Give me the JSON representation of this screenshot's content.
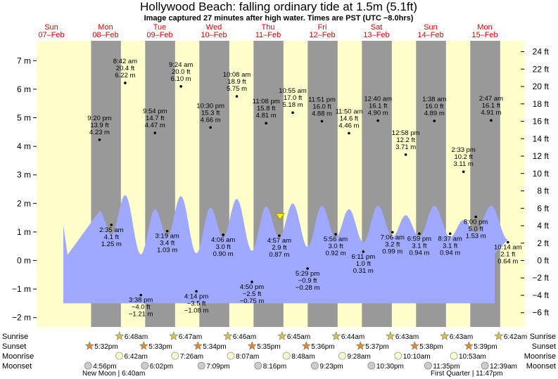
{
  "header": {
    "title": "Hollywood Beach: falling  ordinary tide at 1.5m (5.1ft)",
    "subtitle": "Image captured 27 minutes after high water. Times are PST (UTC −8.0hrs)"
  },
  "chart_data": {
    "type": "area",
    "days": [
      {
        "dow": "Sun",
        "date": "07–Feb"
      },
      {
        "dow": "Mon",
        "date": "08–Feb"
      },
      {
        "dow": "Tue",
        "date": "09–Feb"
      },
      {
        "dow": "Wed",
        "date": "10–Feb"
      },
      {
        "dow": "Thu",
        "date": "11–Feb"
      },
      {
        "dow": "Fri",
        "date": "12–Feb"
      },
      {
        "dow": "Sat",
        "date": "13–Feb"
      },
      {
        "dow": "Sun",
        "date": "14–Feb"
      },
      {
        "dow": "Mon",
        "date": "15–Feb"
      }
    ],
    "y_left": {
      "unit": "m",
      "ylim": [
        -2.3,
        7.6
      ],
      "ticks": [
        -2,
        -1,
        0,
        1,
        2,
        3,
        4,
        5,
        6,
        7
      ],
      "tick_labels": [
        "−2 m",
        "−1 m",
        "0 m",
        "1 m",
        "2 m",
        "3 m",
        "4 m",
        "5 m",
        "6 m",
        "7 m"
      ]
    },
    "y_right": {
      "unit": "ft",
      "ticks": [
        -6,
        -4,
        -2,
        0,
        2,
        4,
        6,
        8,
        10,
        12,
        14,
        16,
        18,
        20,
        22,
        24
      ],
      "tick_labels": [
        "−6 ft",
        "−4 ft",
        "−2 ft",
        "0 ft",
        "2 ft",
        "4 ft",
        "6 ft",
        "8 ft",
        "10 ft",
        "12 ft",
        "14 ft",
        "16 ft",
        "18 ft",
        "20 ft",
        "22 ft",
        "24 ft"
      ]
    },
    "series": [
      {
        "values": [
          {
            "day": 0,
            "time": "9:20 pm",
            "ft": "13.9 ft",
            "m": 4.23,
            "lab": "4.23 m",
            "hour": 21.33
          },
          {
            "day": 1,
            "time": "2:35 am",
            "ft": "4.1 ft",
            "m": 1.25,
            "lab": "1.25 m",
            "hour": 2.58
          },
          {
            "day": 1,
            "time": "8:42 am",
            "ft": "20.4 ft",
            "m": 6.22,
            "lab": "6.22 m",
            "hour": 8.7
          },
          {
            "day": 1,
            "time": "3:38 pm",
            "ft": "−4.0 ft",
            "m": -1.21,
            "lab": "−1.21 m",
            "hour": 15.63
          },
          {
            "day": 1,
            "time": "9:54 pm",
            "ft": "14.7 ft",
            "m": 4.47,
            "lab": "4.47 m",
            "hour": 21.9
          },
          {
            "day": 2,
            "time": "3:19 am",
            "ft": "3.4 ft",
            "m": 1.03,
            "lab": "1.03 m",
            "hour": 3.32
          },
          {
            "day": 2,
            "time": "9:24 am",
            "ft": "20.0 ft",
            "m": 6.1,
            "lab": "6.10 m",
            "hour": 9.4
          },
          {
            "day": 2,
            "time": "4:14 pm",
            "ft": "−3.5 ft",
            "m": -1.08,
            "lab": "−1.08 m",
            "hour": 16.23
          },
          {
            "day": 2,
            "time": "10:30 pm",
            "ft": "15.3 ft",
            "m": 4.66,
            "lab": "4.66 m",
            "hour": 22.5
          },
          {
            "day": 3,
            "time": "4:06 am",
            "ft": "3.0 ft",
            "m": 0.9,
            "lab": "0.90 m",
            "hour": 4.1
          },
          {
            "day": 3,
            "time": "10:08 am",
            "ft": "18.9 ft",
            "m": 5.75,
            "lab": "5.75 m",
            "hour": 10.13
          },
          {
            "day": 3,
            "time": "4:50 pm",
            "ft": "−2.5 ft",
            "m": -0.75,
            "lab": "−0.75 m",
            "hour": 16.83
          },
          {
            "day": 3,
            "time": "11:08 pm",
            "ft": "15.8 ft",
            "m": 4.81,
            "lab": "4.81 m",
            "hour": 23.13
          },
          {
            "day": 4,
            "time": "4:57 am",
            "ft": "2.9 ft",
            "m": 0.87,
            "lab": "0.87 m",
            "hour": 4.95
          },
          {
            "day": 4,
            "time": "10:55 am",
            "ft": "17.0 ft",
            "m": 5.18,
            "lab": "5.18 m",
            "hour": 10.92
          },
          {
            "day": 4,
            "time": "5:29 pm",
            "ft": "−0.9 ft",
            "m": -0.28,
            "lab": "−0.28 m",
            "hour": 17.48
          },
          {
            "day": 4,
            "time": "11:51 pm",
            "ft": "16.0 ft",
            "m": 4.88,
            "lab": "4.88 m",
            "hour": 23.85
          },
          {
            "day": 5,
            "time": "5:56 am",
            "ft": "3.0 ft",
            "m": 0.92,
            "lab": "0.92 m",
            "hour": 5.93
          },
          {
            "day": 5,
            "time": "11:50 am",
            "ft": "14.6 ft",
            "m": 4.46,
            "lab": "4.46 m",
            "hour": 11.83
          },
          {
            "day": 5,
            "time": "6:11 pm",
            "ft": "1.0 ft",
            "m": 0.31,
            "lab": "0.31 m",
            "hour": 18.18
          },
          {
            "day": 6,
            "time": "12:40 am",
            "ft": "16.1 ft",
            "m": 4.9,
            "lab": "4.90 m",
            "hour": 0.67
          },
          {
            "day": 6,
            "time": "7:06 am",
            "ft": "3.2 ft",
            "m": 0.99,
            "lab": "0.99 m",
            "hour": 7.1
          },
          {
            "day": 6,
            "time": "12:58 pm",
            "ft": "12.2 ft",
            "m": 3.71,
            "lab": "3.71 m",
            "hour": 12.97
          },
          {
            "day": 6,
            "time": "6:59 pm",
            "ft": "3.1 ft",
            "m": 0.94,
            "lab": "0.94 m",
            "hour": 18.98
          },
          {
            "day": 7,
            "time": "1:38 am",
            "ft": "16.0 ft",
            "m": 4.89,
            "lab": "4.89 m",
            "hour": 1.63
          },
          {
            "day": 7,
            "time": "8:37 am",
            "ft": "3.1 ft",
            "m": 0.94,
            "lab": "0.94 m",
            "hour": 8.62
          },
          {
            "day": 7,
            "time": "2:33 pm",
            "ft": "10.2 ft",
            "m": 3.11,
            "lab": "3.11 m",
            "hour": 14.55
          },
          {
            "day": 7,
            "time": "8:00 pm",
            "ft": "5.0 ft",
            "m": 1.53,
            "lab": "1.53 m",
            "hour": 20.0
          },
          {
            "day": 8,
            "time": "2:47 am",
            "ft": "16.1 ft",
            "m": 4.91,
            "lab": "4.91 m",
            "hour": 2.78
          },
          {
            "day": 8,
            "time": "10:14 am",
            "ft": "2.1 ft",
            "m": 0.64,
            "lab": "0.64 m",
            "hour": 10.23
          }
        ]
      }
    ],
    "current_level_m": 1.5,
    "colors": {
      "day": "#ffffcc",
      "night": "#999999",
      "water": "#9fa9ff",
      "red": "#e00000"
    }
  },
  "rows": {
    "labels": [
      "Sunrise",
      "Sunset",
      "Moonrise",
      "Moonset"
    ],
    "sunrise": [
      "6:48am",
      "6:47am",
      "6:46am",
      "6:45am",
      "6:44am",
      "6:43am",
      "6:43am",
      "6:42am"
    ],
    "sunset": [
      "5:32pm",
      "5:33pm",
      "5:34pm",
      "5:35pm",
      "5:36pm",
      "5:37pm",
      "5:38pm",
      "5:39pm"
    ],
    "moonrise": [
      "6:42am",
      "7:26am",
      "8:07am",
      "8:48am",
      "9:28am",
      "10:10am",
      "10:53am"
    ],
    "moonset": [
      "4:56pm",
      "6:02pm",
      "7:09pm",
      "8:16pm",
      "9:23pm",
      "10:30pm",
      "11:35pm",
      "12:39am"
    ],
    "new_moon": "New Moon | 6:40am",
    "first_quarter": "First Quarter | 11:47pm"
  }
}
